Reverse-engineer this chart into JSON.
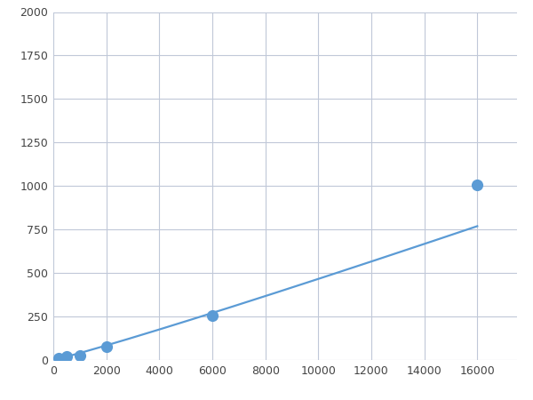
{
  "x": [
    200,
    500,
    1000,
    2000,
    6000,
    16000
  ],
  "y": [
    10,
    20,
    25,
    75,
    255,
    1005
  ],
  "line_color": "#5b9bd5",
  "marker_color": "#5b9bd5",
  "marker_size": 6,
  "line_width": 1.6,
  "xlim": [
    0,
    17500
  ],
  "ylim": [
    0,
    2000
  ],
  "xticks": [
    0,
    2000,
    4000,
    6000,
    8000,
    10000,
    12000,
    14000,
    16000
  ],
  "yticks": [
    0,
    250,
    500,
    750,
    1000,
    1250,
    1500,
    1750,
    2000
  ],
  "grid_color": "#c0c8d8",
  "plot_bg": "#ffffff",
  "figure_bg": "#ffffff"
}
